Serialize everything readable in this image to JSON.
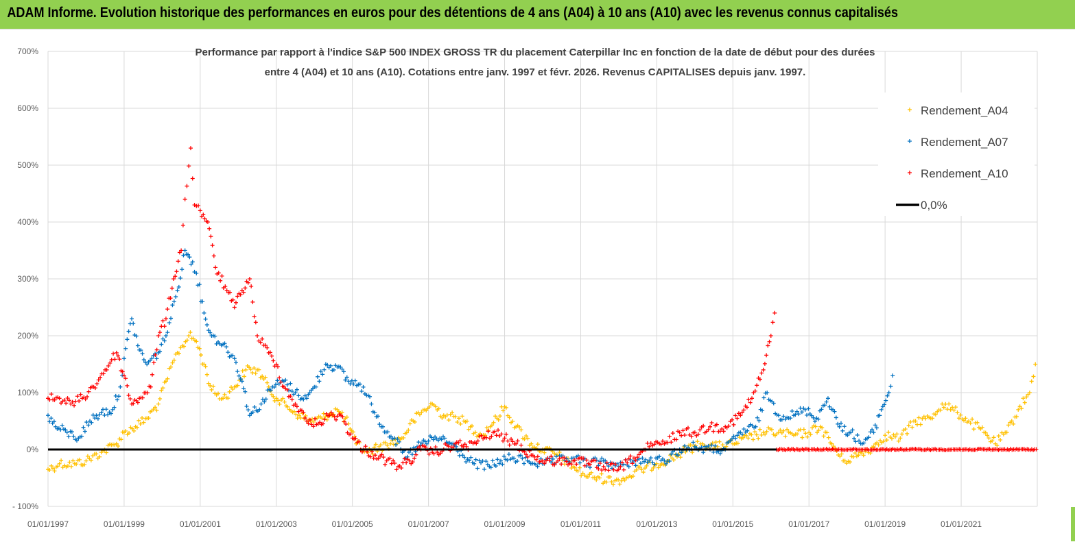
{
  "banner": {
    "title": "ADAM Informe. Evolution historique des performances en euros pour des détentions de 4 ans (A04) à 10 ans (A10) avec les revenus connus capitalisés"
  },
  "colors": {
    "banner": "#92d050",
    "a04": "#ffc000",
    "a07": "#0070c0",
    "a10": "#ff0000",
    "zero": "#000000",
    "grid": "#d9d9d9"
  },
  "chart_data": {
    "type": "scatter",
    "title_line1": "Performance par rapport à l'indice S&P 500 INDEX GROSS TR  du placement Caterpillar Inc en  fonction de la date de début pour des durées",
    "title_line2": "entre 4 (A04) et 10 ans (A10).  Cotations entre janv. 1997 et févr. 2026. Revenus  CAPITALISES depuis janv. 1997.",
    "xlabel": "",
    "ylabel": "",
    "xlim": [
      1997.0,
      2023.0
    ],
    "ylim": [
      -100,
      700
    ],
    "yticks": [
      -100,
      0,
      100,
      200,
      300,
      400,
      500,
      600,
      700
    ],
    "ytick_labels": [
      "- 100%",
      "0%",
      "100%",
      "200%",
      "300%",
      "400%",
      "500%",
      "600%",
      "700%"
    ],
    "xticks": [
      1997,
      1999,
      2001,
      2003,
      2005,
      2007,
      2009,
      2011,
      2013,
      2015,
      2017,
      2019,
      2021
    ],
    "xtick_labels": [
      "01/01/1997",
      "01/01/1999",
      "01/01/2001",
      "01/01/2003",
      "01/01/2005",
      "01/01/2007",
      "01/01/2009",
      "01/01/2011",
      "01/01/2013",
      "01/01/2015",
      "01/01/2017",
      "01/01/2019",
      "01/01/2021"
    ],
    "grid": true,
    "legend_position": "top-right",
    "series": [
      {
        "name": "Rendement_A04",
        "color": "#ffc000",
        "marker": "+",
        "points": [
          [
            1997.0,
            -35
          ],
          [
            1997.3,
            -25
          ],
          [
            1997.7,
            -25
          ],
          [
            1998.0,
            -20
          ],
          [
            1998.4,
            -5
          ],
          [
            1998.8,
            10
          ],
          [
            1999.0,
            30
          ],
          [
            1999.3,
            40
          ],
          [
            1999.6,
            55
          ],
          [
            1999.9,
            80
          ],
          [
            2000.1,
            120
          ],
          [
            2000.4,
            170
          ],
          [
            2000.7,
            200
          ],
          [
            2000.9,
            190
          ],
          [
            2001.1,
            150
          ],
          [
            2001.3,
            105
          ],
          [
            2001.6,
            90
          ],
          [
            2001.9,
            110
          ],
          [
            2002.2,
            140
          ],
          [
            2002.5,
            140
          ],
          [
            2002.8,
            110
          ],
          [
            2003.0,
            90
          ],
          [
            2003.3,
            75
          ],
          [
            2003.6,
            60
          ],
          [
            2003.9,
            50
          ],
          [
            2004.2,
            55
          ],
          [
            2004.6,
            70
          ],
          [
            2004.9,
            45
          ],
          [
            2005.1,
            10
          ],
          [
            2005.4,
            -5
          ],
          [
            2005.7,
            5
          ],
          [
            2006.0,
            10
          ],
          [
            2006.3,
            20
          ],
          [
            2006.6,
            50
          ],
          [
            2006.9,
            70
          ],
          [
            2007.1,
            80
          ],
          [
            2007.4,
            60
          ],
          [
            2007.8,
            55
          ],
          [
            2008.1,
            40
          ],
          [
            2008.4,
            25
          ],
          [
            2008.8,
            55
          ],
          [
            2009.0,
            75
          ],
          [
            2009.3,
            40
          ],
          [
            2009.7,
            10
          ],
          [
            2010.0,
            0
          ],
          [
            2010.4,
            -10
          ],
          [
            2010.8,
            -30
          ],
          [
            2011.1,
            -45
          ],
          [
            2011.5,
            -50
          ],
          [
            2011.9,
            -55
          ],
          [
            2012.2,
            -50
          ],
          [
            2012.6,
            -35
          ],
          [
            2013.0,
            -25
          ],
          [
            2013.4,
            -15
          ],
          [
            2013.8,
            0
          ],
          [
            2014.2,
            10
          ],
          [
            2014.6,
            5
          ],
          [
            2015.0,
            10
          ],
          [
            2015.4,
            20
          ],
          [
            2015.8,
            30
          ],
          [
            2016.2,
            30
          ],
          [
            2016.6,
            25
          ],
          [
            2017.0,
            30
          ],
          [
            2017.3,
            40
          ],
          [
            2017.6,
            10
          ],
          [
            2017.9,
            -20
          ],
          [
            2018.3,
            -10
          ],
          [
            2018.7,
            5
          ],
          [
            2019.0,
            25
          ],
          [
            2019.4,
            20
          ],
          [
            2019.8,
            50
          ],
          [
            2020.2,
            55
          ],
          [
            2020.5,
            80
          ],
          [
            2020.9,
            65
          ],
          [
            2021.2,
            50
          ],
          [
            2021.6,
            30
          ],
          [
            2021.9,
            10
          ],
          [
            2022.2,
            30
          ],
          [
            2022.5,
            70
          ],
          [
            2022.8,
            100
          ],
          [
            2022.95,
            150
          ]
        ]
      },
      {
        "name": "Rendement_A07",
        "color": "#0070c0",
        "marker": "+",
        "points": [
          [
            1997.0,
            60
          ],
          [
            1997.2,
            40
          ],
          [
            1997.5,
            30
          ],
          [
            1997.8,
            20
          ],
          [
            1998.1,
            50
          ],
          [
            1998.4,
            65
          ],
          [
            1998.7,
            70
          ],
          [
            1998.9,
            110
          ],
          [
            1999.0,
            160
          ],
          [
            1999.2,
            230
          ],
          [
            1999.4,
            175
          ],
          [
            1999.6,
            150
          ],
          [
            1999.9,
            170
          ],
          [
            2000.1,
            200
          ],
          [
            2000.4,
            280
          ],
          [
            2000.6,
            350
          ],
          [
            2000.8,
            330
          ],
          [
            2000.9,
            310
          ],
          [
            2001.1,
            240
          ],
          [
            2001.3,
            200
          ],
          [
            2001.6,
            185
          ],
          [
            2001.9,
            160
          ],
          [
            2002.1,
            120
          ],
          [
            2002.3,
            60
          ],
          [
            2002.6,
            80
          ],
          [
            2002.9,
            110
          ],
          [
            2003.2,
            120
          ],
          [
            2003.5,
            100
          ],
          [
            2003.8,
            90
          ],
          [
            2004.0,
            110
          ],
          [
            2004.3,
            150
          ],
          [
            2004.6,
            145
          ],
          [
            2004.9,
            120
          ],
          [
            2005.2,
            115
          ],
          [
            2005.5,
            80
          ],
          [
            2005.8,
            40
          ],
          [
            2006.1,
            20
          ],
          [
            2006.4,
            -15
          ],
          [
            2006.7,
            5
          ],
          [
            2007.0,
            15
          ],
          [
            2007.3,
            20
          ],
          [
            2007.6,
            10
          ],
          [
            2007.9,
            -10
          ],
          [
            2008.2,
            -25
          ],
          [
            2008.6,
            -30
          ],
          [
            2008.9,
            -20
          ],
          [
            2009.2,
            -15
          ],
          [
            2009.6,
            -20
          ],
          [
            2010.0,
            -25
          ],
          [
            2010.4,
            -20
          ],
          [
            2010.8,
            -15
          ],
          [
            2011.2,
            -25
          ],
          [
            2011.6,
            -20
          ],
          [
            2012.0,
            -30
          ],
          [
            2012.4,
            -20
          ],
          [
            2012.8,
            -20
          ],
          [
            2013.2,
            -20
          ],
          [
            2013.6,
            0
          ],
          [
            2014.0,
            5
          ],
          [
            2014.4,
            0
          ],
          [
            2014.8,
            0
          ],
          [
            2015.2,
            30
          ],
          [
            2015.6,
            40
          ],
          [
            2015.9,
            100
          ],
          [
            2016.2,
            60
          ],
          [
            2016.6,
            60
          ],
          [
            2016.9,
            70
          ],
          [
            2017.2,
            55
          ],
          [
            2017.5,
            90
          ],
          [
            2017.8,
            40
          ],
          [
            2018.1,
            30
          ],
          [
            2018.4,
            10
          ],
          [
            2018.7,
            30
          ],
          [
            2018.9,
            70
          ],
          [
            2019.1,
            100
          ],
          [
            2019.2,
            130
          ]
        ]
      },
      {
        "name": "Rendement_A10",
        "color": "#ff0000",
        "marker": "+",
        "points": [
          [
            1997.0,
            90
          ],
          [
            1997.3,
            90
          ],
          [
            1997.6,
            80
          ],
          [
            1997.9,
            90
          ],
          [
            1998.2,
            110
          ],
          [
            1998.5,
            140
          ],
          [
            1998.8,
            170
          ],
          [
            1999.0,
            130
          ],
          [
            1999.2,
            80
          ],
          [
            1999.4,
            90
          ],
          [
            1999.7,
            110
          ],
          [
            1999.9,
            200
          ],
          [
            2000.1,
            230
          ],
          [
            2000.3,
            300
          ],
          [
            2000.5,
            350
          ],
          [
            2000.6,
            440
          ],
          [
            2000.75,
            530
          ],
          [
            2000.85,
            430
          ],
          [
            2001.0,
            420
          ],
          [
            2001.2,
            400
          ],
          [
            2001.4,
            320
          ],
          [
            2001.7,
            280
          ],
          [
            2001.9,
            250
          ],
          [
            2002.1,
            280
          ],
          [
            2002.3,
            300
          ],
          [
            2002.5,
            200
          ],
          [
            2002.8,
            170
          ],
          [
            2003.0,
            150
          ],
          [
            2003.2,
            110
          ],
          [
            2003.5,
            80
          ],
          [
            2003.8,
            50
          ],
          [
            2004.1,
            45
          ],
          [
            2004.4,
            60
          ],
          [
            2004.7,
            60
          ],
          [
            2005.0,
            20
          ],
          [
            2005.3,
            0
          ],
          [
            2005.6,
            -10
          ],
          [
            2005.9,
            -20
          ],
          [
            2006.2,
            -30
          ],
          [
            2006.5,
            -20
          ],
          [
            2006.8,
            0
          ],
          [
            2007.1,
            -5
          ],
          [
            2007.4,
            0
          ],
          [
            2007.7,
            10
          ],
          [
            2008.0,
            5
          ],
          [
            2008.3,
            15
          ],
          [
            2008.7,
            30
          ],
          [
            2009.0,
            20
          ],
          [
            2009.3,
            10
          ],
          [
            2009.7,
            -10
          ],
          [
            2010.0,
            -20
          ],
          [
            2010.4,
            -20
          ],
          [
            2010.8,
            -20
          ],
          [
            2011.2,
            -25
          ],
          [
            2011.6,
            -30
          ],
          [
            2012.0,
            -35
          ],
          [
            2012.4,
            -15
          ],
          [
            2012.8,
            5
          ],
          [
            2013.2,
            10
          ],
          [
            2013.6,
            30
          ],
          [
            2014.0,
            30
          ],
          [
            2014.4,
            40
          ],
          [
            2014.8,
            40
          ],
          [
            2015.2,
            60
          ],
          [
            2015.5,
            90
          ],
          [
            2015.8,
            140
          ],
          [
            2016.0,
            200
          ],
          [
            2016.1,
            240
          ]
        ]
      },
      {
        "name": "0,0%",
        "color": "#000000",
        "marker": "line",
        "points": [
          [
            1997.0,
            0
          ],
          [
            2023.0,
            0
          ]
        ]
      }
    ]
  }
}
